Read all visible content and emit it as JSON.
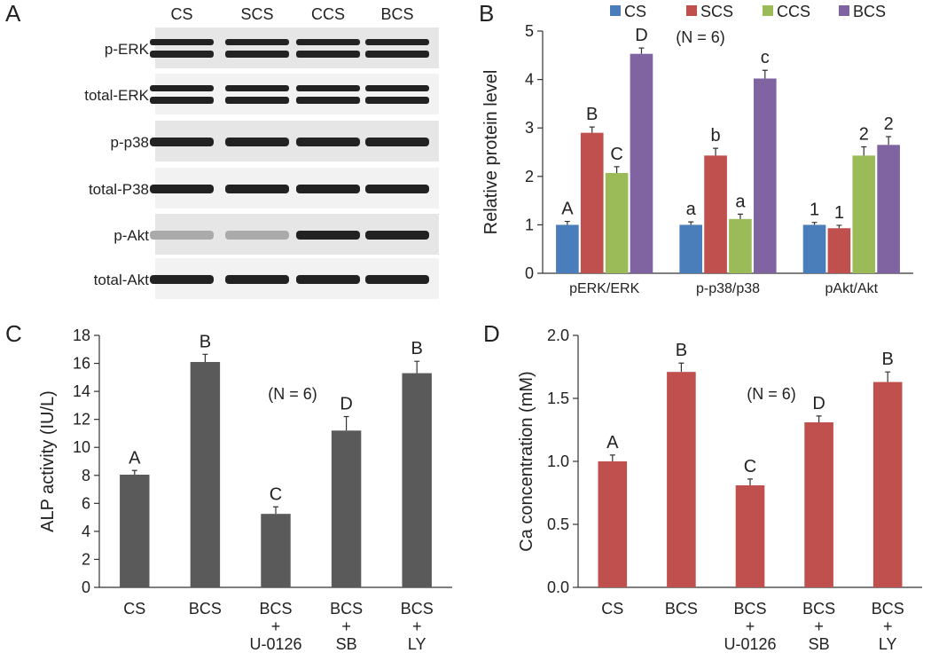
{
  "blot": {
    "panel": "A",
    "lanes": [
      "CS",
      "SCS",
      "CCS",
      "BCS"
    ],
    "rows": [
      "p-ERK",
      "total-ERK",
      "p-p38",
      "total-P38",
      "p-Akt",
      "total-Akt"
    ]
  },
  "chart_data": [
    {
      "type": "bar",
      "panel": "B",
      "subtitle": "(N = 6)",
      "y_label": "Relative protein level",
      "categories": [
        "pERK/ERK",
        "p-p38/p38",
        "pAkt/Akt"
      ],
      "series": [
        {
          "name": "CS",
          "color": "#4a7ebb",
          "values": [
            1.0,
            1.0,
            1.0
          ],
          "errors": [
            0.07,
            0.06,
            0.05
          ],
          "letters": [
            "A",
            "a",
            "1"
          ]
        },
        {
          "name": "SCS",
          "color": "#c0504d",
          "values": [
            2.9,
            2.43,
            0.93
          ],
          "errors": [
            0.12,
            0.15,
            0.06
          ],
          "letters": [
            "B",
            "b",
            "1"
          ]
        },
        {
          "name": "CCS",
          "color": "#9bbb59",
          "values": [
            2.07,
            1.12,
            2.43
          ],
          "errors": [
            0.13,
            0.1,
            0.18
          ],
          "letters": [
            "C",
            "a",
            "2"
          ]
        },
        {
          "name": "BCS",
          "color": "#8064a2",
          "values": [
            4.53,
            4.02,
            2.65
          ],
          "errors": [
            0.12,
            0.17,
            0.17
          ],
          "letters": [
            "D",
            "c",
            "2"
          ]
        }
      ],
      "ylim": [
        0,
        5
      ],
      "yticks": [
        0,
        1,
        2,
        3,
        4,
        5
      ]
    },
    {
      "type": "bar",
      "panel": "C",
      "subtitle": "(N = 6)",
      "y_label": "ALP activity (IU/L)",
      "categories": [
        [
          "CS"
        ],
        [
          "BCS"
        ],
        [
          "BCS",
          "+",
          "U-0126"
        ],
        [
          "BCS",
          "+",
          "SB"
        ],
        [
          "BCS",
          "+",
          "LY"
        ]
      ],
      "series": [
        {
          "color": "#5a5a5a",
          "values": [
            8.05,
            16.1,
            5.25,
            11.2,
            15.3
          ],
          "errors": [
            0.3,
            0.55,
            0.5,
            1.0,
            0.85
          ],
          "letters": [
            "A",
            "B",
            "C",
            "D",
            "B"
          ]
        }
      ],
      "ylim": [
        0,
        18
      ],
      "yticks": [
        0,
        2,
        4,
        6,
        8,
        10,
        12,
        14,
        16,
        18
      ]
    },
    {
      "type": "bar",
      "panel": "D",
      "subtitle": "(N = 6)",
      "y_label": "Ca concentration (mM)",
      "categories": [
        [
          "CS"
        ],
        [
          "BCS"
        ],
        [
          "BCS",
          "+",
          "U-0126"
        ],
        [
          "BCS",
          "+",
          "SB"
        ],
        [
          "BCS",
          "+",
          "LY"
        ]
      ],
      "series": [
        {
          "color": "#c0504d",
          "values": [
            1.0,
            1.71,
            0.81,
            1.31,
            1.63
          ],
          "errors": [
            0.05,
            0.07,
            0.05,
            0.05,
            0.08
          ],
          "letters": [
            "A",
            "B",
            "C",
            "D",
            "B"
          ]
        }
      ],
      "ylim": [
        0,
        2
      ],
      "yticks": [
        {
          "value": 0,
          "label": "0.0"
        },
        0.5,
        {
          "value": 1,
          "label": "1.0"
        },
        1.5,
        {
          "value": 2,
          "label": "2.0"
        }
      ]
    }
  ]
}
